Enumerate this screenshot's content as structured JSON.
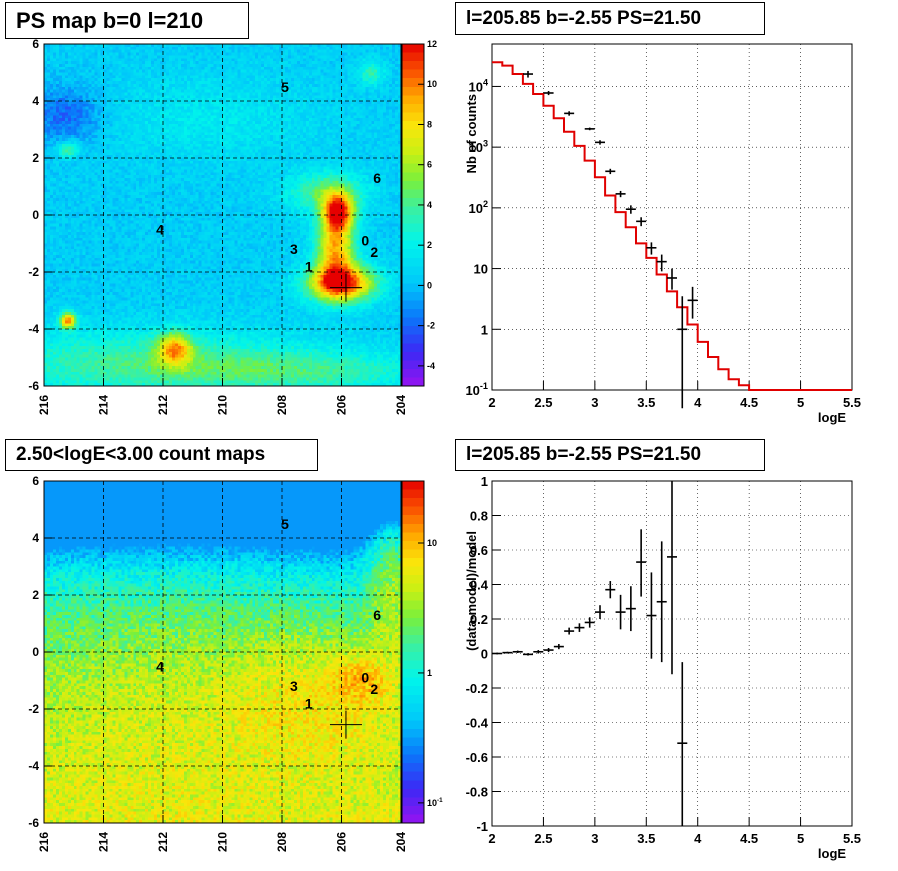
{
  "panels": {
    "top_left_title": "PS map b=0 l=210",
    "top_right_title": "l=205.85 b=-2.55 PS=21.50",
    "bottom_left_title": "2.50<logE<3.00 count maps",
    "bottom_right_title": "l=205.85 b=-2.55 PS=21.50"
  },
  "chart_data": [
    {
      "type": "heatmap",
      "title": "PS map b=0 l=210",
      "xlabel": "",
      "ylabel": "",
      "xlim": [
        216,
        204
      ],
      "ylim": [
        -6,
        6
      ],
      "x_ticks": [
        "216",
        "214",
        "212",
        "210",
        "208",
        "206",
        "204"
      ],
      "y_ticks": [
        "-6",
        "-4",
        "-2",
        "0",
        "2",
        "4",
        "6"
      ],
      "colorbar_ticks": [
        "-4",
        "-2",
        "0",
        "2",
        "4",
        "6",
        "8",
        "10",
        "12"
      ],
      "colorbar_range": [
        -5,
        12
      ],
      "grid": true,
      "source_labels": [
        {
          "label": "0",
          "l": 205.2,
          "b": -0.9
        },
        {
          "label": "1",
          "l": 207.1,
          "b": -1.8
        },
        {
          "label": "2",
          "l": 204.9,
          "b": -1.3
        },
        {
          "label": "3",
          "l": 207.6,
          "b": -1.2
        },
        {
          "label": "4",
          "l": 212.1,
          "b": -0.5
        },
        {
          "label": "5",
          "l": 207.9,
          "b": 4.5
        },
        {
          "label": "6",
          "l": 204.8,
          "b": 1.3
        }
      ],
      "marker": {
        "l": 205.85,
        "b": -2.55
      }
    },
    {
      "type": "line",
      "title": "l=205.85 b=-2.55 PS=21.50",
      "xlabel": "logE",
      "ylabel": "Nb of counts",
      "xlim": [
        2,
        5.5
      ],
      "ylim": [
        0.1,
        50000
      ],
      "yscale": "log",
      "x_ticks": [
        "2",
        "2.5",
        "3",
        "3.5",
        "4",
        "4.5",
        "5",
        "5.5"
      ],
      "y_ticks": [
        "10^-1",
        "1",
        "10",
        "10^2",
        "10^3",
        "10^4"
      ],
      "grid": true,
      "series": [
        {
          "color": "#e00000",
          "x": [
            2.0,
            2.1,
            2.2,
            2.3,
            2.4,
            2.5,
            2.6,
            2.7,
            2.8,
            2.9,
            3.0,
            3.1,
            3.2,
            3.3,
            3.4,
            3.5,
            3.6,
            3.7,
            3.8,
            3.9,
            4.0,
            4.1,
            4.2,
            4.3,
            4.4,
            4.5,
            5.5
          ],
          "values": [
            25000,
            22000,
            16000,
            11000,
            7500,
            4800,
            3000,
            1800,
            1050,
            600,
            320,
            160,
            85,
            48,
            26,
            15,
            8,
            4.2,
            2.3,
            1.2,
            0.62,
            0.35,
            0.22,
            0.15,
            0.12,
            0.1,
            0.1
          ]
        },
        {
          "color": "#000000",
          "x": [
            2.35,
            2.55,
            2.75,
            2.95,
            3.05,
            3.15,
            3.25,
            3.35,
            3.45,
            3.55,
            3.65,
            3.75,
            3.85,
            3.95
          ],
          "values": [
            16000,
            7800,
            3600,
            2000,
            1200,
            400,
            170,
            95,
            60,
            22,
            13,
            7,
            1,
            3
          ],
          "y_low": [
            14000,
            7200,
            3300,
            1900,
            1100,
            360,
            150,
            80,
            50,
            17,
            9,
            4.5,
            0.05,
            1.5
          ],
          "y_high": [
            18000,
            8400,
            3900,
            2100,
            1300,
            440,
            190,
            110,
            70,
            27,
            17,
            10,
            3.5,
            5
          ]
        }
      ]
    },
    {
      "type": "heatmap",
      "title": "2.50<logE<3.00 count maps",
      "xlabel": "",
      "ylabel": "",
      "xlim": [
        216,
        204
      ],
      "ylim": [
        -6,
        6
      ],
      "x_ticks": [
        "216",
        "214",
        "212",
        "210",
        "208",
        "206",
        "204"
      ],
      "y_ticks": [
        "-6",
        "-4",
        "-2",
        "0",
        "2",
        "4",
        "6"
      ],
      "colorbar_ticks": [
        "10^-1",
        "1",
        "10"
      ],
      "colorbar_range": [
        0.07,
        30
      ],
      "colorbar_scale": "log",
      "grid": true,
      "source_labels": [
        {
          "label": "0",
          "l": 205.2,
          "b": -0.9
        },
        {
          "label": "1",
          "l": 207.1,
          "b": -1.8
        },
        {
          "label": "2",
          "l": 204.9,
          "b": -1.3
        },
        {
          "label": "3",
          "l": 207.6,
          "b": -1.2
        },
        {
          "label": "4",
          "l": 212.1,
          "b": -0.5
        },
        {
          "label": "5",
          "l": 207.9,
          "b": 4.5
        },
        {
          "label": "6",
          "l": 204.8,
          "b": 1.3
        }
      ],
      "marker": {
        "l": 205.85,
        "b": -2.55
      }
    },
    {
      "type": "scatter",
      "title": "l=205.85 b=-2.55 PS=21.50",
      "xlabel": "logE",
      "ylabel": "(data-model)/model",
      "xlim": [
        2,
        5.5
      ],
      "ylim": [
        -1,
        1
      ],
      "x_ticks": [
        "2",
        "2.5",
        "3",
        "3.5",
        "4",
        "4.5",
        "5",
        "5.5"
      ],
      "y_ticks": [
        "-1",
        "-0.8",
        "-0.6",
        "-0.4",
        "-0.2",
        "0",
        "0.2",
        "0.4",
        "0.6",
        "0.8",
        "1"
      ],
      "grid": true,
      "series": [
        {
          "color": "#000000",
          "x": [
            2.05,
            2.15,
            2.25,
            2.35,
            2.45,
            2.55,
            2.65,
            2.75,
            2.85,
            2.95,
            3.05,
            3.15,
            3.25,
            3.35,
            3.45,
            3.55,
            3.65,
            3.75,
            3.85
          ],
          "values": [
            0.0,
            0.005,
            0.01,
            -0.005,
            0.01,
            0.02,
            0.04,
            0.13,
            0.15,
            0.18,
            0.24,
            0.37,
            0.24,
            0.26,
            0.53,
            0.22,
            0.3,
            0.56,
            -0.52
          ],
          "y_low": [
            -0.005,
            0.0,
            0.003,
            -0.012,
            0.0,
            0.008,
            0.025,
            0.11,
            0.125,
            0.15,
            0.2,
            0.32,
            0.14,
            0.13,
            0.33,
            -0.03,
            -0.05,
            -0.12,
            -1.0
          ],
          "y_high": [
            0.005,
            0.01,
            0.017,
            0.002,
            0.02,
            0.032,
            0.055,
            0.15,
            0.175,
            0.21,
            0.28,
            0.42,
            0.34,
            0.39,
            0.72,
            0.47,
            0.65,
            1.0,
            -0.05
          ]
        }
      ]
    }
  ]
}
